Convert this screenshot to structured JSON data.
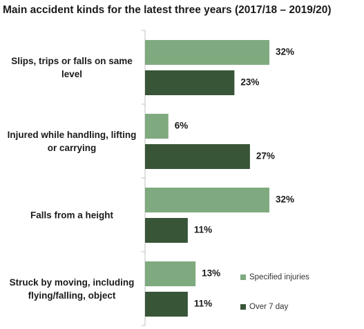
{
  "chart_data": {
    "type": "hbar",
    "title": "Main accident kinds for the latest three years (2017/18 – 2019/20)",
    "categories": [
      "Slips, trips or falls on same level",
      "Injured while handling, lifting or carrying",
      "Falls from a height",
      "Struck by moving, including flying/falling, object"
    ],
    "series": [
      {
        "name": "Specified injuries",
        "color": "#7faa7f",
        "values": [
          32,
          6,
          32,
          13
        ],
        "value_labels": [
          "32%",
          "6%",
          "32%",
          "13%"
        ]
      },
      {
        "name": "Over 7 day",
        "color": "#385537",
        "values": [
          23,
          27,
          11,
          11
        ],
        "value_labels": [
          "23%",
          "27%",
          "11%",
          "11%"
        ]
      }
    ],
    "legend": "lower right"
  }
}
